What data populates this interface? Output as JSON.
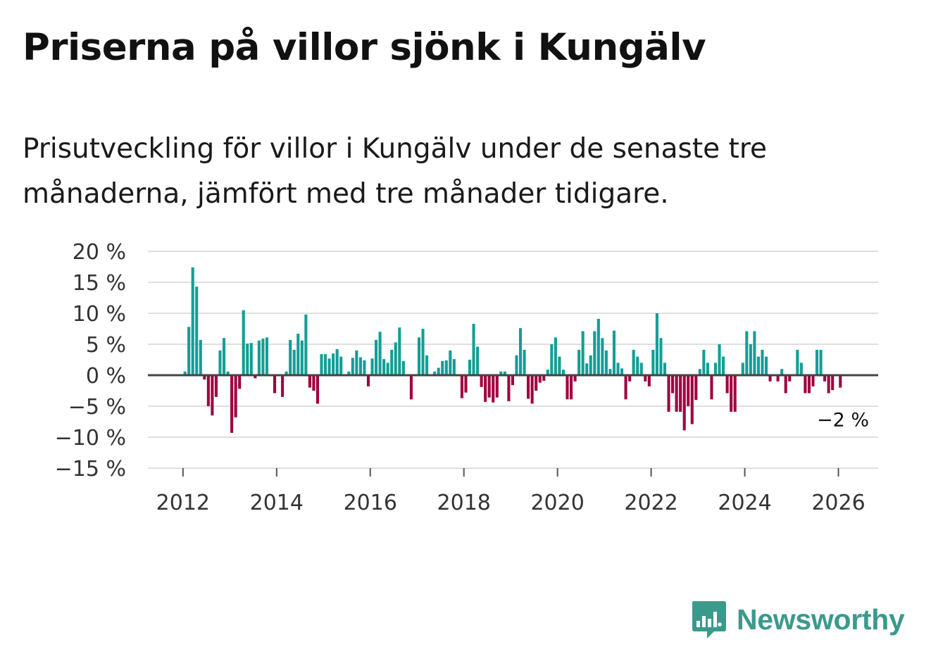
{
  "title": "Priserna på villor sjönk i Kungälv",
  "subtitle": "Prisutveckling för villor i Kungälv under de senaste tre månaderna, jämfört med tre månader tidigare.",
  "brand": {
    "name": "Newsworthy",
    "color": "#3a9a8c"
  },
  "colors": {
    "positive": "#139e96",
    "negative": "#a0003f",
    "gridline": "#dedede",
    "zeroline": "#444444"
  },
  "chart_data": {
    "type": "bar",
    "title": "Priserna på villor sjönk i Kungälv",
    "xlabel": "",
    "ylabel": "",
    "ylim": [
      -15,
      20
    ],
    "yticks": [
      20,
      15,
      10,
      5,
      0,
      -5,
      -10,
      -15
    ],
    "ytick_labels": [
      "20 %",
      "15 %",
      "10 %",
      "5 %",
      "0 %",
      "−5 %",
      "−10 %",
      "−15 %"
    ],
    "xlim": [
      2011.25,
      2026.85
    ],
    "xticks": [
      2012,
      2014,
      2016,
      2018,
      2020,
      2022,
      2024,
      2026
    ],
    "xtick_labels": [
      "2012",
      "2014",
      "2016",
      "2018",
      "2020",
      "2022",
      "2024",
      "2026"
    ],
    "start": {
      "year": 2012,
      "month": 1
    },
    "unit": "%",
    "end_label": "−2 %",
    "grid": true,
    "values": [
      0.6,
      7.8,
      17.4,
      14.3,
      5.7,
      -0.7,
      -5.0,
      -6.5,
      -3.5,
      4.0,
      6.0,
      0.6,
      -9.3,
      -6.8,
      -2.2,
      10.5,
      5.1,
      5.2,
      -0.5,
      5.6,
      5.9,
      6.1,
      0.0,
      -2.9,
      0.0,
      -3.5,
      0.6,
      5.7,
      4.1,
      6.7,
      5.6,
      9.8,
      -2.0,
      -2.5,
      -4.6,
      3.4,
      3.4,
      2.7,
      3.5,
      4.2,
      3.0,
      0.0,
      0.6,
      2.8,
      4.0,
      2.9,
      2.4,
      -1.8,
      2.7,
      5.7,
      7.0,
      2.6,
      2.0,
      4.1,
      5.3,
      7.7,
      2.3,
      0.0,
      -3.9,
      0.0,
      6.1,
      7.5,
      3.2,
      0.0,
      0.6,
      1.2,
      2.3,
      2.4,
      4.0,
      2.6,
      0.0,
      -3.7,
      -2.8,
      2.5,
      8.3,
      4.6,
      -1.9,
      -4.3,
      -3.6,
      -4.4,
      -3.6,
      0.6,
      0.6,
      -4.2,
      -1.6,
      3.2,
      7.6,
      4.1,
      -3.8,
      -4.6,
      -2.5,
      -1.2,
      -0.9,
      0.9,
      5.0,
      6.1,
      3.0,
      0.9,
      -3.9,
      -3.9,
      -1.0,
      4.1,
      7.1,
      1.9,
      3.2,
      7.1,
      9.1,
      6.0,
      4.0,
      1.0,
      7.2,
      2.0,
      1.1,
      -3.9,
      -1.0,
      4.1,
      3.0,
      2.0,
      -1.0,
      -1.8,
      4.1,
      10.0,
      6.0,
      2.0,
      -5.9,
      -2.9,
      -5.9,
      -5.9,
      -8.9,
      -5.0,
      -7.9,
      -4.0,
      1.0,
      4.1,
      2.0,
      -3.9,
      2.0,
      5.0,
      3.0,
      -2.9,
      -5.9,
      -5.9,
      0.0,
      2.0,
      7.1,
      5.0,
      7.1,
      3.0,
      4.1,
      3.0,
      -1.0,
      0.0,
      -1.0,
      1.0,
      -2.9,
      -1.0,
      0.0,
      4.1,
      2.0,
      -2.9,
      -2.9,
      -1.8,
      4.1,
      4.1,
      -1.0,
      -2.9,
      -2.4,
      0.0,
      -2.0
    ]
  }
}
